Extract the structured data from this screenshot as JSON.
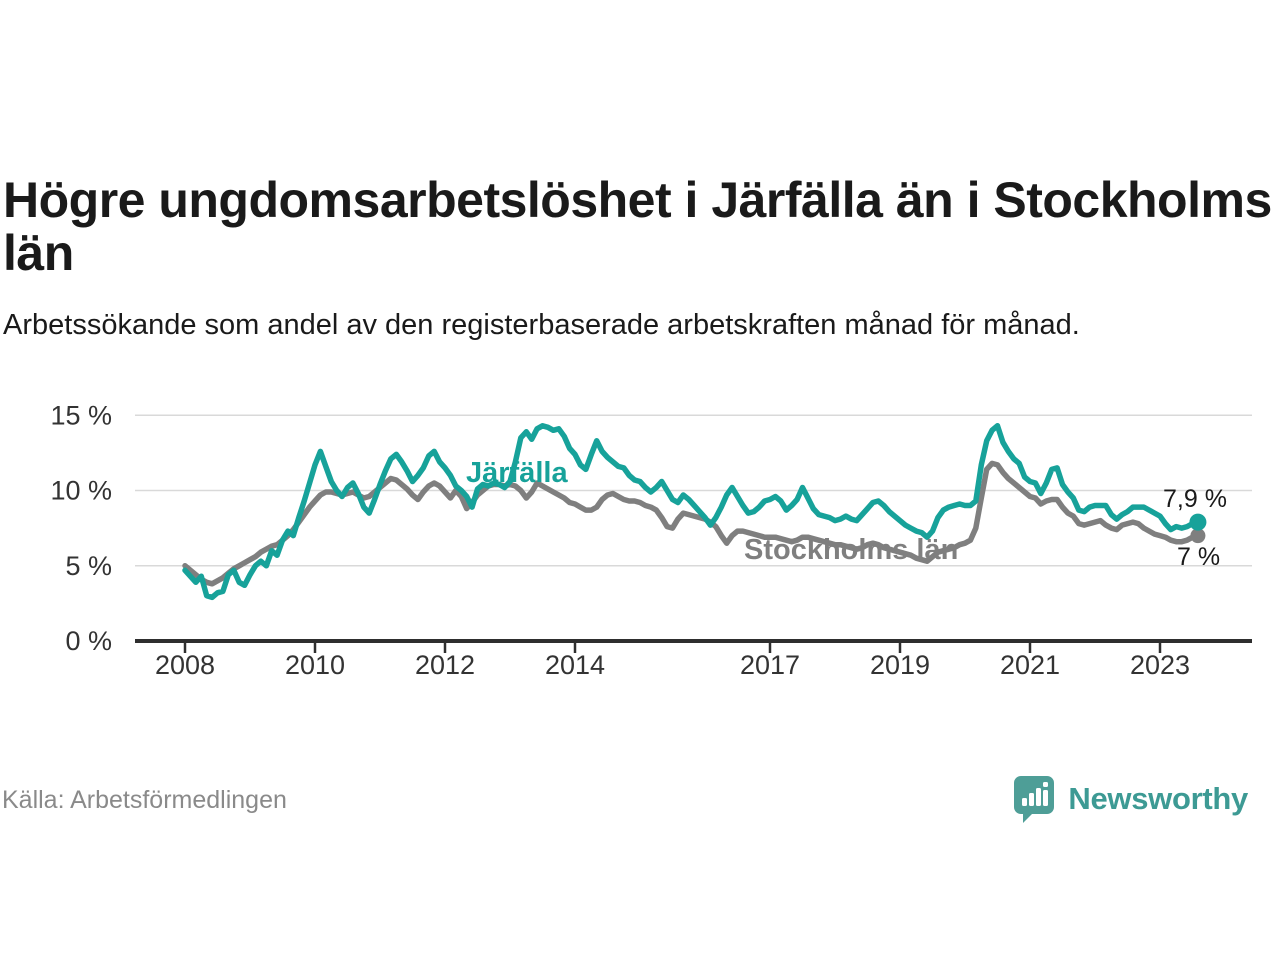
{
  "header": {
    "title": "Högre ungdomsarbetslöshet i Järfälla än i Stockholms län",
    "subtitle": "Arbetssökande som andel av den registerbaserade arbetskraften månad för månad."
  },
  "footer": {
    "source": "Källa: Arbetsförmedlingen",
    "brand": {
      "name": "Newsworthy",
      "icon": "newsworthy-pin-barchart-icon",
      "color": "#3d9a94"
    }
  },
  "colors": {
    "jarfalla": "#17a29a",
    "stockholms_lan": "#7f7f7f",
    "grid": "#d9d9d9",
    "axis": "#2e2e2e",
    "tick_text": "#333333",
    "end_label_text": "#1a1a1a"
  },
  "chart_data": {
    "type": "line",
    "title": "Högre ungdomsarbetslöshet i Järfälla än i Stockholms län",
    "xlabel": "",
    "ylabel": "",
    "unit": "%",
    "frequency": "monthly",
    "start": "2008-01",
    "end": "2023-08",
    "start_year": 2008,
    "ylim": [
      0,
      15
    ],
    "grid": "horizontal",
    "legend_position": "inline-labels",
    "yticks": [
      {
        "value": 0,
        "label": "0 %"
      },
      {
        "value": 5,
        "label": "5 %"
      },
      {
        "value": 10,
        "label": "10 %"
      },
      {
        "value": 15,
        "label": "15 %"
      }
    ],
    "xticks": [
      {
        "year": 2008,
        "label": "2008"
      },
      {
        "year": 2010,
        "label": "2010"
      },
      {
        "year": 2012,
        "label": "2012"
      },
      {
        "year": 2014,
        "label": "2014"
      },
      {
        "year": 2017,
        "label": "2017"
      },
      {
        "year": 2019,
        "label": "2019"
      },
      {
        "year": 2021,
        "label": "2021"
      },
      {
        "year": 2023,
        "label": "2023"
      }
    ],
    "series": [
      {
        "id": "stockholms_lan",
        "name": "Stockholms län",
        "color": "#7f7f7f",
        "end_label": "7 %",
        "end_value": 7.0,
        "values": [
          5.0,
          4.7,
          4.4,
          4.1,
          3.9,
          3.8,
          4.0,
          4.2,
          4.5,
          4.8,
          5.0,
          5.2,
          5.4,
          5.6,
          5.9,
          6.1,
          6.3,
          6.4,
          6.7,
          7.0,
          7.4,
          7.9,
          8.4,
          8.9,
          9.3,
          9.7,
          9.9,
          9.9,
          9.8,
          9.7,
          9.8,
          9.9,
          9.7,
          9.5,
          9.6,
          9.9,
          10.2,
          10.5,
          10.8,
          10.7,
          10.4,
          10.1,
          9.7,
          9.4,
          9.9,
          10.3,
          10.5,
          10.3,
          9.9,
          9.5,
          10.0,
          9.6,
          8.8,
          9.2,
          9.7,
          10.0,
          10.3,
          10.4,
          10.4,
          10.3,
          10.4,
          10.3,
          10.0,
          9.5,
          9.9,
          10.5,
          10.3,
          10.1,
          9.9,
          9.7,
          9.5,
          9.2,
          9.1,
          8.9,
          8.7,
          8.7,
          8.9,
          9.4,
          9.7,
          9.8,
          9.6,
          9.4,
          9.3,
          9.3,
          9.2,
          9.0,
          8.9,
          8.7,
          8.2,
          7.6,
          7.5,
          8.1,
          8.5,
          8.4,
          8.3,
          8.2,
          8.1,
          7.9,
          7.6,
          7.0,
          6.5,
          7.0,
          7.3,
          7.3,
          7.2,
          7.1,
          7.0,
          6.9,
          6.9,
          6.9,
          6.8,
          6.7,
          6.6,
          6.7,
          6.9,
          6.9,
          6.8,
          6.7,
          6.6,
          6.5,
          6.4,
          6.4,
          6.3,
          6.2,
          6.1,
          6.2,
          6.4,
          6.5,
          6.4,
          6.2,
          6.1,
          6.0,
          5.9,
          5.8,
          5.7,
          5.5,
          5.4,
          5.3,
          5.6,
          5.9,
          6.0,
          6.1,
          6.2,
          6.4,
          6.5,
          6.7,
          7.5,
          9.5,
          11.4,
          11.8,
          11.7,
          11.2,
          10.8,
          10.5,
          10.2,
          9.9,
          9.6,
          9.5,
          9.1,
          9.3,
          9.4,
          9.4,
          8.9,
          8.5,
          8.3,
          7.8,
          7.7,
          7.8,
          7.9,
          8.0,
          7.7,
          7.5,
          7.4,
          7.7,
          7.8,
          7.9,
          7.8,
          7.5,
          7.3,
          7.1,
          7.0,
          6.9,
          6.7,
          6.6,
          6.6,
          6.7,
          6.9,
          7.0
        ]
      },
      {
        "id": "jarfalla",
        "name": "Järfälla",
        "color": "#17a29a",
        "end_label": "7,9 %",
        "end_value": 7.9,
        "values": [
          4.7,
          4.3,
          3.9,
          4.3,
          3.0,
          2.9,
          3.2,
          3.3,
          4.4,
          4.7,
          3.9,
          3.7,
          4.4,
          5.0,
          5.3,
          5.0,
          6.0,
          5.7,
          6.7,
          7.3,
          7.0,
          8.2,
          9.3,
          10.5,
          11.7,
          12.6,
          11.6,
          10.6,
          10.0,
          9.6,
          10.2,
          10.5,
          9.8,
          8.9,
          8.5,
          9.4,
          10.4,
          11.3,
          12.1,
          12.4,
          11.9,
          11.3,
          10.6,
          11.0,
          11.5,
          12.3,
          12.6,
          11.9,
          11.5,
          11.0,
          10.3,
          10.0,
          9.6,
          8.9,
          10.1,
          10.4,
          10.3,
          10.5,
          10.4,
          10.2,
          10.6,
          11.9,
          13.5,
          13.9,
          13.4,
          14.1,
          14.3,
          14.2,
          14.0,
          14.1,
          13.6,
          12.8,
          12.4,
          11.7,
          11.4,
          12.4,
          13.3,
          12.6,
          12.2,
          11.9,
          11.6,
          11.5,
          11.0,
          10.7,
          10.6,
          10.2,
          9.9,
          10.2,
          10.6,
          10.0,
          9.4,
          9.2,
          9.7,
          9.4,
          9.0,
          8.6,
          8.2,
          7.7,
          8.2,
          8.9,
          9.7,
          10.2,
          9.6,
          9.0,
          8.5,
          8.6,
          8.9,
          9.3,
          9.4,
          9.6,
          9.3,
          8.7,
          9.0,
          9.4,
          10.2,
          9.5,
          8.8,
          8.4,
          8.3,
          8.2,
          8.0,
          8.1,
          8.3,
          8.1,
          8.0,
          8.4,
          8.8,
          9.2,
          9.3,
          9.0,
          8.6,
          8.3,
          8.0,
          7.7,
          7.5,
          7.3,
          7.2,
          6.9,
          7.3,
          8.2,
          8.7,
          8.9,
          9.0,
          9.1,
          9.0,
          9.0,
          9.3,
          11.7,
          13.3,
          14.0,
          14.3,
          13.2,
          12.6,
          12.1,
          11.8,
          10.9,
          10.6,
          10.5,
          9.8,
          10.5,
          11.4,
          11.5,
          10.4,
          9.9,
          9.5,
          8.7,
          8.6,
          8.9,
          9.0,
          9.0,
          9.0,
          8.4,
          8.1,
          8.4,
          8.6,
          8.9,
          8.9,
          8.9,
          8.7,
          8.5,
          8.3,
          7.8,
          7.4,
          7.6,
          7.5,
          7.6,
          7.8,
          7.9
        ]
      }
    ]
  }
}
